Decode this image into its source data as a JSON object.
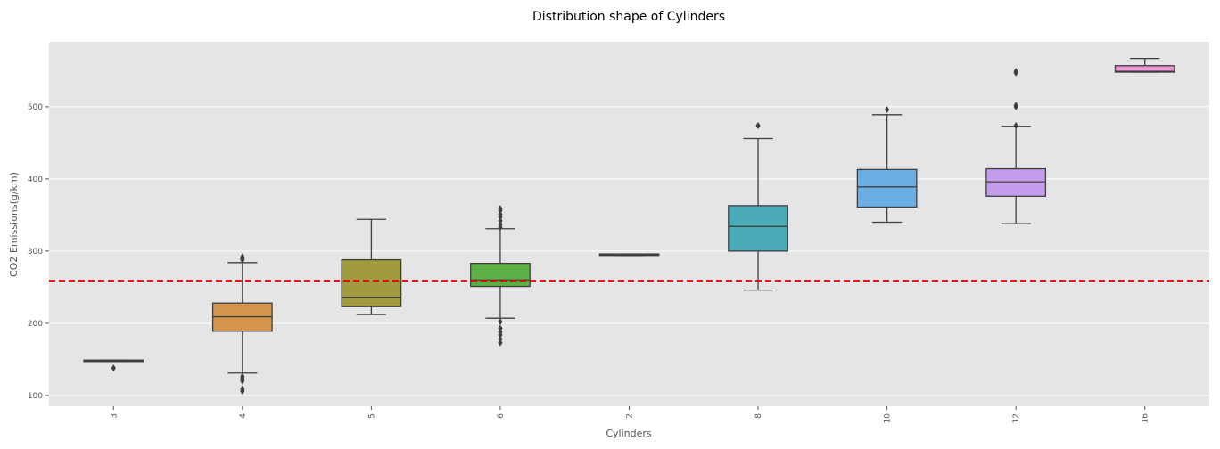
{
  "chart_data": {
    "type": "box",
    "title": "Distribution shape of Cylinders",
    "xlabel": "Cylinders",
    "ylabel": "CO2 Emissions(g/km)",
    "ylim": [
      85,
      590
    ],
    "yticks": [
      100,
      200,
      300,
      400,
      500
    ],
    "grid": true,
    "reference_line": {
      "value": 259,
      "style": "dashed",
      "color": "#e8000b"
    },
    "categories": [
      "3",
      "4",
      "5",
      "6",
      "2",
      "8",
      "10",
      "12",
      "16"
    ],
    "boxes": [
      {
        "category": "3",
        "color": "#e24a33",
        "whisker_low": 147,
        "q1": 147,
        "median": 148,
        "q3": 149,
        "whisker_high": 149,
        "outliers": [
          138
        ]
      },
      {
        "category": "4",
        "color": "#d6944a",
        "whisker_low": 131,
        "q1": 189,
        "median": 209,
        "q3": 228,
        "whisker_high": 284,
        "outliers": [
          106,
          109,
          120,
          123,
          126,
          288,
          290,
          292
        ]
      },
      {
        "category": "5",
        "color": "#a19a3f",
        "whisker_low": 212,
        "q1": 223,
        "median": 236,
        "q3": 288,
        "whisker_high": 344,
        "outliers": []
      },
      {
        "category": "6",
        "color": "#5cb046",
        "whisker_low": 207,
        "q1": 251,
        "median": 260,
        "q3": 283,
        "whisker_high": 331,
        "outliers": [
          173,
          178,
          184,
          188,
          193,
          202,
          333,
          337,
          342,
          347,
          351,
          356,
          359
        ]
      },
      {
        "category": "2",
        "color": "#5aa85a",
        "whisker_low": 294,
        "q1": 294,
        "median": 295,
        "q3": 296,
        "whisker_high": 296,
        "outliers": []
      },
      {
        "category": "8",
        "color": "#48abb5",
        "whisker_low": 246,
        "q1": 300,
        "median": 334,
        "q3": 363,
        "whisker_high": 456,
        "outliers": [
          474
        ]
      },
      {
        "category": "10",
        "color": "#6aaee3",
        "whisker_low": 340,
        "q1": 361,
        "median": 389,
        "q3": 413,
        "whisker_high": 489,
        "outliers": [
          496
        ]
      },
      {
        "category": "12",
        "color": "#c49cec",
        "whisker_low": 338,
        "q1": 376,
        "median": 396,
        "q3": 414,
        "whisker_high": 473,
        "outliers": [
          474,
          500,
          502,
          547,
          549
        ]
      },
      {
        "category": "16",
        "color": "#e892cf",
        "whisker_low": 548,
        "q1": 548,
        "median": 549,
        "q3": 557,
        "whisker_high": 567,
        "outliers": []
      }
    ]
  }
}
